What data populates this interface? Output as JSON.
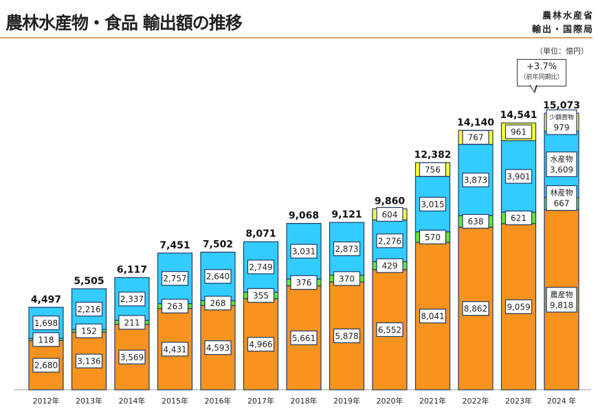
{
  "header": {
    "title": "農林水産物・食品 輸出額の推移",
    "org_line1": "農林水産省",
    "org_line2": "輸出・国際局",
    "unit": "（単位：億円）"
  },
  "callout": {
    "change": "+3.7%",
    "note": "（前年同期比）"
  },
  "chart_data": {
    "type": "bar",
    "stacked": true,
    "title": "農林水産物・食品 輸出額の推移",
    "categories": [
      "2012年",
      "2013年",
      "2014年",
      "2015年",
      "2016年",
      "2017年",
      "2018年",
      "2019年",
      "2020年",
      "2021年",
      "2022年",
      "2023年",
      "2024 年"
    ],
    "series": [
      {
        "name": "農産物",
        "color": "#F7931E",
        "values": [
          2680,
          3136,
          3569,
          4431,
          4593,
          4966,
          5661,
          5878,
          6552,
          8041,
          8862,
          9059,
          9818
        ]
      },
      {
        "name": "林産物",
        "color": "#66E33A",
        "values": [
          118,
          152,
          211,
          263,
          268,
          355,
          376,
          370,
          429,
          570,
          638,
          621,
          667
        ]
      },
      {
        "name": "水産物",
        "color": "#33CCFF",
        "values": [
          1698,
          2216,
          2337,
          2757,
          2640,
          2749,
          3031,
          2873,
          2276,
          3015,
          3873,
          3901,
          3609
        ]
      },
      {
        "name": "少額貨物",
        "color": "#FFFF33",
        "values": [
          null,
          null,
          null,
          null,
          null,
          null,
          null,
          null,
          604,
          756,
          767,
          961,
          979
        ]
      }
    ],
    "value_labels": [
      [
        "2,680",
        "3,136",
        "3,569",
        "4,431",
        "4,593",
        "4,966",
        "5,661",
        "5,878",
        "6,552",
        "8,041",
        "8,862",
        "9,059",
        "9,818"
      ],
      [
        "118",
        "152",
        "211",
        "263",
        "268",
        "355",
        "376",
        "370",
        "429",
        "570",
        "638",
        "621",
        "667"
      ],
      [
        "1,698",
        "2,216",
        "2,337",
        "2,757",
        "2,640",
        "2,749",
        "3,031",
        "2,873",
        "2,276",
        "3,015",
        "3,873",
        "3,901",
        "3,609"
      ],
      [
        null,
        null,
        null,
        null,
        null,
        null,
        null,
        null,
        "604",
        "756",
        "767",
        "961",
        "979"
      ]
    ],
    "totals": [
      "4,497",
      "5,505",
      "6,117",
      "7,451",
      "7,502",
      "8,071",
      "9,068",
      "9,121",
      "9,860",
      "12,382",
      "14,140",
      "14,541",
      "15,073"
    ],
    "ylim": [
      0,
      15073
    ],
    "grid": false,
    "legend": "inline labels on 2024 bar"
  }
}
